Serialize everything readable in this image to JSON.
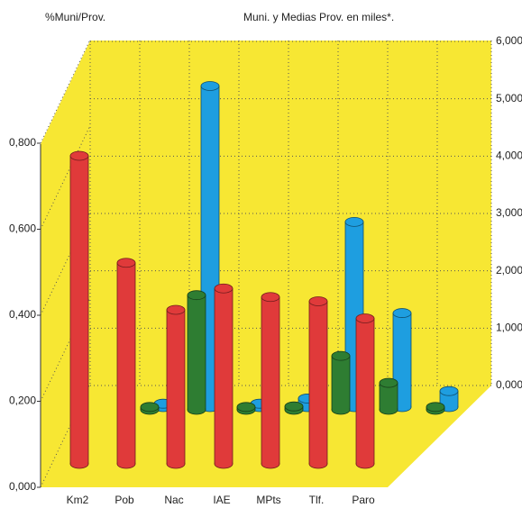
{
  "chart_data": {
    "type": "bar3d",
    "y_label": "%Muni/Prov.",
    "y2_label": "Muni. y Medias Prov. en miles*.",
    "categories": [
      "Km2",
      "Pob",
      "Nac",
      "IAE",
      "MPts",
      "Tlf.",
      "Paro"
    ],
    "series": [
      {
        "color": "#e03a3a",
        "values": [
          0.72,
          0.47,
          0.36,
          0.41,
          0.39,
          0.38,
          0.34
        ]
      },
      {
        "color": "#2e7d32",
        "axis": "y2",
        "values": [
          50,
          2000,
          50,
          60,
          940,
          470,
          50
        ]
      },
      {
        "color": "#1e9ee0",
        "axis": "y2",
        "values": [
          60,
          5600,
          60,
          150,
          3230,
          1640,
          280
        ]
      }
    ],
    "ylim": [
      0,
      0.8
    ],
    "yticks": [
      {
        "value": 0,
        "label": "0,000"
      },
      {
        "value": 0.2,
        "label": "0,200"
      },
      {
        "value": 0.4,
        "label": "0,400"
      },
      {
        "value": 0.6,
        "label": "0,600"
      },
      {
        "value": 0.8,
        "label": "0,800"
      }
    ],
    "y2lim": [
      0,
      6000
    ],
    "y2ticks": [
      {
        "value": 0,
        "label": "0,000"
      },
      {
        "value": 1000,
        "label": "1,000"
      },
      {
        "value": 2000,
        "label": "2,000"
      },
      {
        "value": 3000,
        "label": "3,000"
      },
      {
        "value": 4000,
        "label": "4,000"
      },
      {
        "value": 5000,
        "label": "5,000"
      },
      {
        "value": 6000,
        "label": "6,000"
      }
    ],
    "grid": true
  }
}
